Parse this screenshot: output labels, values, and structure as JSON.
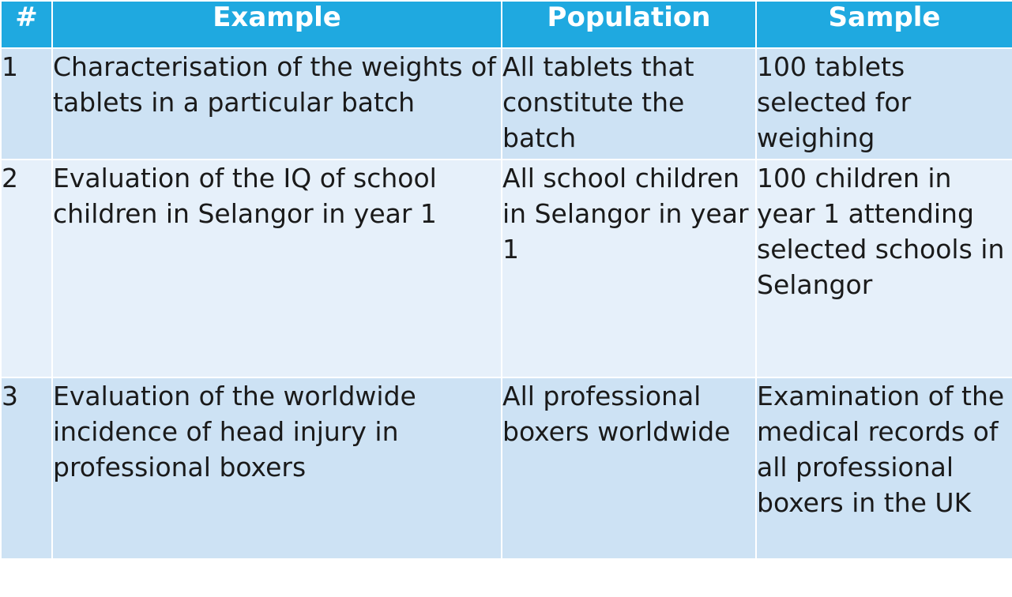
{
  "table": {
    "headers": [
      "#",
      "Example",
      "Population",
      "Sample"
    ],
    "rows": [
      {
        "num": "1",
        "example": "Characterisation of the weights of tablets in a particular batch",
        "population": "All tablets that constitute the batch",
        "sample": "100 tablets selected for weighing"
      },
      {
        "num": "2",
        "example": "Evaluation of the IQ of school children in Selangor in year 1",
        "population": "All school children in Selangor in year 1",
        "sample": "100 children in year 1 attending selected schools in Selangor"
      },
      {
        "num": "3",
        "example": "Evaluation of the worldwide incidence of head injury in professional boxers",
        "population": "All professional boxers worldwide",
        "sample": "Examination of the medical records of all professional boxers in the UK"
      }
    ]
  },
  "colors": {
    "header_bg": "#1fa9e0",
    "row_odd_bg": "#cde2f4",
    "row_even_bg": "#e6f0fa"
  }
}
